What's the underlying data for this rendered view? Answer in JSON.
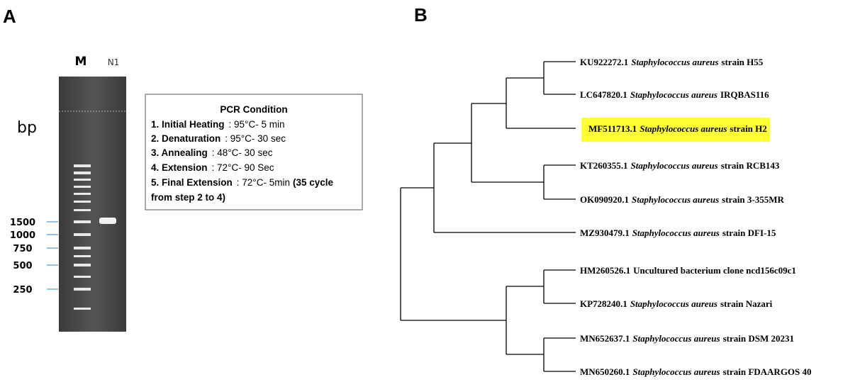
{
  "panel_a": {
    "label": "A",
    "lanes": [
      "M",
      "N1"
    ],
    "unit": "bp",
    "ladder": [
      "1500",
      "1000",
      "750",
      "500",
      "250"
    ],
    "pcr": {
      "title": "PCR Condition",
      "steps": [
        {
          "name": "1. Initial Heating",
          "value": ": 95°C- 5 min"
        },
        {
          "name": "2. Denaturation",
          "value": ": 95°C- 30 sec"
        },
        {
          "name": "3. Annealing",
          "value": ": 48°C- 30 sec"
        },
        {
          "name": "4. Extension",
          "value": ": 72°C- 90 Sec"
        },
        {
          "name": "5. Final Extension",
          "value": ": 72°C- 5min",
          "note": "(35 cycle",
          "note2": "from step 2 to 4)"
        }
      ]
    }
  },
  "panel_b": {
    "label": "B",
    "highlight_index": 2,
    "leaves": [
      {
        "accession": "KU922272.1",
        "species": "Staphylococcus aureus",
        "rest": "strain H55"
      },
      {
        "accession": "LC647820.1",
        "species": "Staphylococcus aureus",
        "rest": "IRQBAS116"
      },
      {
        "accession": "MF511713.1",
        "species": "Staphylococcus aureus",
        "rest": "strain H2"
      },
      {
        "accession": "KT260355.1",
        "species": "Staphylococcus aureus",
        "rest": "strain RCB143"
      },
      {
        "accession": "OK090920.1",
        "species": "Staphylococcus aureus",
        "rest": "strain 3-355MR"
      },
      {
        "accession": "MZ930479.1",
        "species": "Staphylococcus aureus",
        "rest": "strain DFI-15"
      },
      {
        "accession": "HM260526.1",
        "rest": "Uncultured bacterium clone ncd156c09c1"
      },
      {
        "accession": "KP728240.1",
        "species": "Staphylococcus aureus",
        "rest": "strain Nazari"
      },
      {
        "accession": "MN652637.1",
        "species": "Staphylococcus aureus",
        "rest": "strain DSM 20231"
      },
      {
        "accession": "MN650260.1",
        "species": "Staphylococcus aureus",
        "rest": "strain FDAARGOS 40"
      }
    ]
  }
}
